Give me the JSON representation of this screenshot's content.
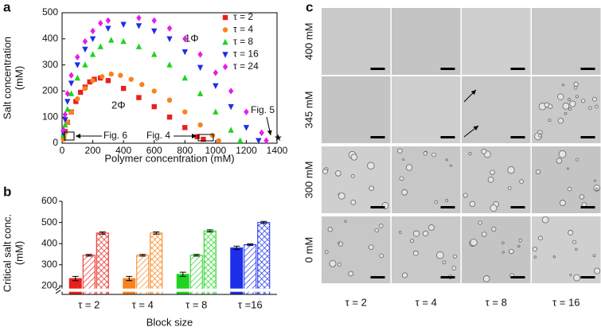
{
  "chart_data": [
    {
      "type": "scatter",
      "panel": "a",
      "xlabel": "Polymer concentration (mM)",
      "ylabel": [
        "Salt concentration",
        "(mM)"
      ],
      "xlim": [
        0,
        1400
      ],
      "xticks": [
        0,
        200,
        400,
        600,
        800,
        1000,
        1200,
        1400
      ],
      "ylim": [
        0,
        500
      ],
      "yticks": [
        0,
        100,
        200,
        300,
        400,
        500
      ],
      "legend": "top-right",
      "series": [
        {
          "name": "τ = 2",
          "color": "#e8201c",
          "marker": "square",
          "x": [
            10,
            20,
            35,
            60,
            90,
            120,
            150,
            180,
            210,
            250,
            300,
            400,
            500,
            600,
            700,
            800,
            880,
            920
          ],
          "values": [
            20,
            45,
            80,
            120,
            160,
            195,
            215,
            235,
            245,
            250,
            240,
            210,
            175,
            140,
            100,
            60,
            25,
            15
          ]
        },
        {
          "name": "τ = 4",
          "color": "#f7831f",
          "marker": "circle",
          "x": [
            10,
            20,
            35,
            60,
            100,
            150,
            200,
            260,
            320,
            380,
            450,
            520,
            600,
            700,
            800,
            900,
            980,
            1020
          ],
          "values": [
            15,
            40,
            80,
            120,
            170,
            210,
            240,
            255,
            265,
            260,
            245,
            225,
            200,
            165,
            120,
            70,
            30,
            10
          ]
        },
        {
          "name": "τ = 8",
          "color": "#1fd41f",
          "marker": "triangle-up",
          "x": [
            10,
            20,
            35,
            60,
            100,
            150,
            200,
            250,
            320,
            400,
            500,
            600,
            700,
            800,
            900,
            1000,
            1100,
            1160
          ],
          "values": [
            30,
            70,
            130,
            190,
            250,
            300,
            340,
            370,
            395,
            390,
            370,
            340,
            300,
            250,
            190,
            120,
            50,
            10
          ]
        },
        {
          "name": "τ = 16",
          "color": "#1c2ee8",
          "marker": "triangle-down",
          "x": [
            10,
            20,
            35,
            60,
            100,
            150,
            200,
            300,
            400,
            500,
            600,
            700,
            800,
            900,
            1000,
            1100,
            1200,
            1280
          ],
          "values": [
            40,
            90,
            160,
            230,
            300,
            360,
            400,
            440,
            455,
            450,
            430,
            400,
            350,
            290,
            220,
            140,
            60,
            10
          ]
        },
        {
          "name": "τ = 24",
          "color": "#e81ce8",
          "marker": "diamond",
          "x": [
            10,
            20,
            35,
            60,
            100,
            150,
            200,
            250,
            300,
            500,
            600,
            700,
            800,
            900,
            1000,
            1100,
            1200,
            1300,
            1330
          ],
          "values": [
            50,
            110,
            190,
            260,
            330,
            390,
            430,
            460,
            470,
            480,
            470,
            440,
            400,
            340,
            270,
            200,
            120,
            40,
            10
          ]
        }
      ],
      "annotations": [
        "1Φ",
        "2Φ",
        "Fig. 4",
        "Fig. 5",
        "Fig. 6"
      ]
    },
    {
      "type": "bar",
      "panel": "b",
      "xlabel": "Block size",
      "ylabel": [
        "Critical salt conc.",
        "(mM)"
      ],
      "categories": [
        "τ = 2",
        "τ = 4",
        "τ = 8",
        "τ =16"
      ],
      "colors": [
        "#e8201c",
        "#f7831f",
        "#1fd41f",
        "#1c2ee8"
      ],
      "ylim": [
        160,
        600
      ],
      "yticks": [
        200,
        300,
        400,
        500,
        600
      ],
      "axis_break": true,
      "series": [
        {
          "pattern": "solid",
          "values": [
            235,
            235,
            255,
            380
          ],
          "errors": [
            10,
            10,
            10,
            8
          ]
        },
        {
          "pattern": "hatch",
          "values": [
            345,
            345,
            345,
            395
          ],
          "errors": [
            4,
            4,
            4,
            4
          ]
        },
        {
          "pattern": "crosshatch",
          "values": [
            450,
            450,
            460,
            500
          ],
          "errors": [
            5,
            5,
            5,
            5
          ]
        }
      ]
    }
  ],
  "micrographs": {
    "panel": "c",
    "rows": [
      "400 mM",
      "345 mM",
      "300 mM",
      "0 mM"
    ],
    "columns": [
      "τ = 2",
      "τ = 4",
      "τ = 8",
      "τ = 16"
    ]
  }
}
